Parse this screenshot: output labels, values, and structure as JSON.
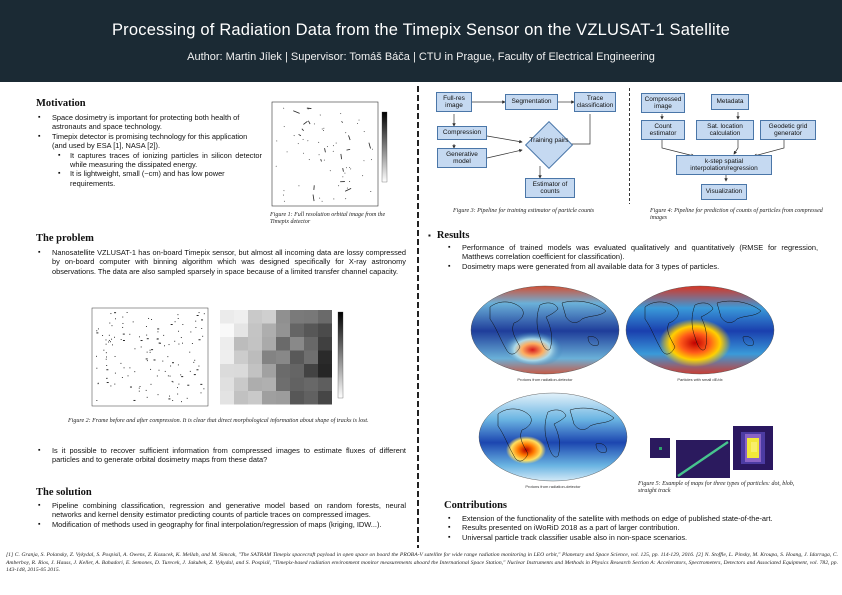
{
  "header": {
    "title": "Processing of Radiation Data from the Timepix Sensor on the VZLUSAT-1 Satellite",
    "authors": "Author: Martin Jílek | Supervisor: Tomáš Báča | CTU in Prague, Faculty of Electrical Engineering"
  },
  "motivation": {
    "heading": "Motivation",
    "items": [
      "Space dosimetry is important for protecting both health of astronauts and space technology.",
      "Timepix detector is promising technology for this application (and used by ESA [1], NASA [2]).",
      "It captures traces of ionizing particles in silicon detector while measuring the dissipated energy.",
      "It is lightweight, small (~cm) and has low power requirements."
    ],
    "fig1_caption": "Figure 1: Full resolution orbital image from the Timepix detector"
  },
  "problem": {
    "heading": "The problem",
    "paragraph": "Nanosatellite VZLUSAT-1 has on-board Timepix sensor, but almost all incoming data are lossy compressed by on-board computer with binning algorithm which was designed specifically for X-ray astronomy observations. The data are also sampled sparsely in space because of a limited transfer channel capacity.",
    "fig2_caption": "Figure 2: Frame before and after compression. It is clear that direct morphological information about shape of tracks is lost.",
    "question": "Is it possible to recover sufficient information from compressed images to estimate fluxes of different particles and to generate orbital dosimetry maps from these data?"
  },
  "solution": {
    "heading": "The solution",
    "items": [
      "Pipeline combining classification, regression and generative model based on random forests, neural networks and kernel density estimator predicting counts of particle traces on compressed images.",
      "Modification of methods used in geography for final interpolation/regression of maps (kriging, IDW...)."
    ]
  },
  "pipeline_train": {
    "boxes": {
      "full_res": "Full-res image",
      "segmentation": "Segmentation",
      "trace_class": "Trace classification",
      "compression": "Compression",
      "generative": "Generative model",
      "training": "Training pairs",
      "estimator": "Estimator of counts"
    },
    "caption": "Figure 3: Pipeline for training estimator of particle counts"
  },
  "pipeline_pred": {
    "boxes": {
      "compressed": "Compressed image",
      "metadata": "Metadata",
      "count_est": "Count estimator",
      "sat_loc": "Sat. location calculation",
      "geodetic": "Geodetic grid generator",
      "interp": "k-step spatial interpolation/regression",
      "visual": "Visualization"
    },
    "caption": "Figure 4: Pipeline for prediction of counts of particles from compressed images"
  },
  "results": {
    "heading": "Results",
    "items": [
      "Performance of trained models was evaluated qualitatively and quantitatively (RMSE for regression, Matthews correlation coefficient for classification).",
      "Dosimetry maps were generated from all available data for 3 types of particles."
    ],
    "map_labels": [
      "Protons from radiation-detector",
      "Particles with small dE/dx",
      "Protons from radiation-detector"
    ],
    "fig5_caption": "Figure 5: Example of maps for three types of particles: dot, blob, straight track"
  },
  "contributions": {
    "heading": "Contributions",
    "items": [
      "Extension of the functionality of the satellite with methods on edge of published state-of-the-art.",
      "Results presented on iWoRiD 2018 as a part of larger contribution.",
      "Universal particle track classifier usable also in non-space scenarios."
    ]
  },
  "references": "[1] C. Granja, S. Polansky, Z. Vykydal, S. Pospisil, A. Owens, Z. Kozacek, K. Mellab, and M. Simcak, \"The SATRAM Timepix spacecraft payload in open space on board the PROBA-V satellite for wide range radiation monitoring in LEO orbit,\" Planetary and Space Science, vol. 125, pp. 114-129, 2016. [2] N. Stoffle, L. Pinsky, M. Kroupa, S. Hoang, J. Idarraga, C. Amberboy, R. Rios, J. Hauss, J. Keller, A. Bahadori, E. Semones, D. Turecek, J. Jakubek, Z. Vykydal, and S. Pospisil, \"Timepix-based radiation environment monitor measurements aboard the International Space Station,\" Nuclear Instruments and Methods in Physics Research Section A: Accelerators, Spectrometers, Detectors and Associated Equipment, vol. 782, pp. 143-148, 2015-05 2015."
}
